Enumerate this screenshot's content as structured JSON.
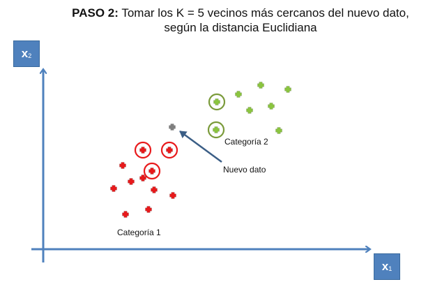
{
  "title": {
    "bold": "PASO 2:",
    "line1": " Tomar los K = 5 vecinos más cercanos del nuevo dato,",
    "line2": "según la distancia Euclidiana"
  },
  "axes": {
    "x_label": "x",
    "x_sub": "1",
    "y_label": "x",
    "y_sub": "2"
  },
  "labels": {
    "category1": "Categoría 1",
    "category2": "Categoría 2",
    "new_point": "Nuevo dato"
  },
  "colors": {
    "axis": "#4f81bd",
    "category1": "#e8191b",
    "category2": "#8bc53f",
    "category2_ring": "#7a9a3a",
    "new_point": "#7f7f7f",
    "arrow": "#3b5e86"
  },
  "points": {
    "category1": [
      [
        205,
        215
      ],
      [
        243,
        215
      ],
      [
        218,
        245
      ],
      [
        176,
        237
      ],
      [
        205,
        255
      ],
      [
        188,
        260
      ],
      [
        163,
        270
      ],
      [
        221,
        272
      ],
      [
        248,
        280
      ],
      [
        213,
        300
      ],
      [
        180,
        307
      ]
    ],
    "category1_neighbors": [
      0,
      1,
      2
    ],
    "category2": [
      [
        311,
        146
      ],
      [
        342,
        135
      ],
      [
        374,
        122
      ],
      [
        413,
        128
      ],
      [
        358,
        158
      ],
      [
        389,
        152
      ],
      [
        310,
        186
      ],
      [
        400,
        187
      ]
    ],
    "category2_neighbors": [
      0,
      6
    ],
    "new_point": [
      247,
      182
    ]
  }
}
